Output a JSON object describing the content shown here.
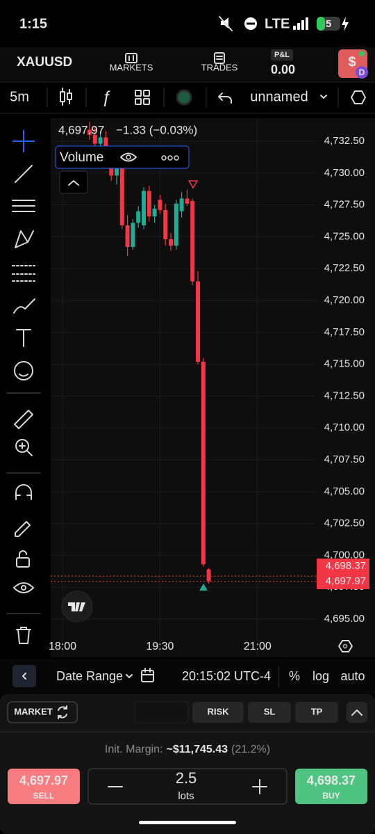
{
  "status_bar": {
    "time": "1:15",
    "network": "LTE",
    "battery": "5"
  },
  "nav": {
    "symbol": "XAUUSD",
    "markets": "MARKETS",
    "trades": "TRADES",
    "pnl_label": "P&L",
    "pnl_value": "0.00",
    "avatar": "$",
    "badge": "D"
  },
  "toolbar": {
    "interval": "5m",
    "layout_name": "unnamed"
  },
  "legend": {
    "price": "4,697.97",
    "change": "−1.33 (−0.03%)",
    "study": "Volume"
  },
  "chart_data": {
    "type": "candlestick",
    "categories": [
      "18:00",
      null,
      null,
      null,
      null,
      null,
      null,
      null,
      null,
      null,
      null,
      null,
      null,
      null,
      null,
      null,
      null,
      null,
      "19:30",
      null,
      null,
      null,
      null,
      null,
      null,
      null,
      null,
      null,
      null,
      null,
      null,
      null,
      null,
      null,
      null,
      null,
      "21:00"
    ],
    "open": [
      null,
      null,
      null,
      null,
      null,
      4733.4,
      4733.0,
      4732.3,
      4732.8,
      4731.2,
      4729.8,
      4730.5,
      4725.9,
      4724.2,
      4726.1,
      4725.9,
      4728.6,
      4726.6,
      4727.9,
      4727.1,
      4724.8,
      4724.3,
      4727.0,
      4728.0,
      4727.8,
      4721.5,
      4715.2,
      4698.9,
      null,
      null,
      null,
      null,
      null,
      null,
      null,
      null,
      null
    ],
    "high": [
      null,
      null,
      null,
      null,
      null,
      4734.0,
      4733.6,
      4733.2,
      4733.3,
      4731.6,
      4731.0,
      4730.9,
      4726.7,
      4726.4,
      4727.4,
      4728.9,
      4729.0,
      4727.5,
      4728.3,
      4727.6,
      4725.3,
      4727.9,
      4728.5,
      4728.7,
      4728.0,
      4722.3,
      4715.5,
      4699.0,
      null,
      null,
      null,
      null,
      null,
      null,
      null,
      null,
      null
    ],
    "low": [
      null,
      null,
      null,
      null,
      null,
      4732.6,
      4731.9,
      4731.5,
      4730.9,
      4729.4,
      4729.1,
      4725.6,
      4723.5,
      4724.0,
      4725.7,
      4725.6,
      4726.2,
      4726.1,
      4726.8,
      4724.3,
      4723.9,
      4724.0,
      4726.5,
      4727.4,
      4721.2,
      4715.0,
      4699.1,
      4697.8,
      null,
      null,
      null,
      null,
      null,
      null,
      null,
      null,
      null
    ],
    "close": [
      null,
      null,
      null,
      null,
      null,
      4733.0,
      4732.3,
      4732.8,
      4731.2,
      4729.8,
      4730.5,
      4725.9,
      4724.2,
      4726.1,
      4727.0,
      4728.6,
      4726.6,
      4727.2,
      4727.1,
      4724.8,
      4724.3,
      4727.6,
      4728.0,
      4727.6,
      4721.5,
      4715.2,
      4699.3,
      4697.97,
      null,
      null,
      null,
      null,
      null,
      null,
      null,
      null,
      null
    ],
    "up_color": "#22ab94",
    "down_color": "#f23645",
    "ylim": [
      4692.0,
      4734.3
    ],
    "yticks": [
      {
        "value": 4695.0,
        "label": "4,695.00"
      },
      {
        "value": 4697.5,
        "label": "4,697.50"
      },
      {
        "value": 4700.0,
        "label": "4,700.00"
      },
      {
        "value": 4702.5,
        "label": "4,702.50"
      },
      {
        "value": 4705.0,
        "label": "4,705.00"
      },
      {
        "value": 4707.5,
        "label": "4,707.50"
      },
      {
        "value": 4710.0,
        "label": "4,710.00"
      },
      {
        "value": 4712.5,
        "label": "4,712.50"
      },
      {
        "value": 4715.0,
        "label": "4,715.00"
      },
      {
        "value": 4717.5,
        "label": "4,717.50"
      },
      {
        "value": 4720.0,
        "label": "4,720.00"
      },
      {
        "value": 4722.5,
        "label": "4,722.50"
      },
      {
        "value": 4725.0,
        "label": "4,725.00"
      },
      {
        "value": 4727.5,
        "label": "4,727.50"
      },
      {
        "value": 4730.0,
        "label": "4,730.00"
      },
      {
        "value": 4732.5,
        "label": "4,732.50"
      }
    ],
    "price_lines": [
      {
        "value": 4698.37,
        "label": "4,698.37"
      },
      {
        "value": 4697.97,
        "label": "4,697.97"
      }
    ],
    "grid": true
  },
  "bottom_bar": {
    "date_range": "Date Range",
    "clock": "20:15:02 UTC-4",
    "percent": "%",
    "log": "log",
    "auto": "auto"
  },
  "order_panel": {
    "order_type": "MARKET",
    "risk": "RISK",
    "sl": "SL",
    "tp": "TP",
    "margin_label": "Init. Margin:",
    "margin_value": "~$11,745.43",
    "margin_pct": "(21.2%)",
    "sell_price": "4,697.97",
    "sell": "SELL",
    "quantity": "2.5",
    "unit": "lots",
    "buy_price": "4,698.37",
    "buy": "BUY"
  }
}
